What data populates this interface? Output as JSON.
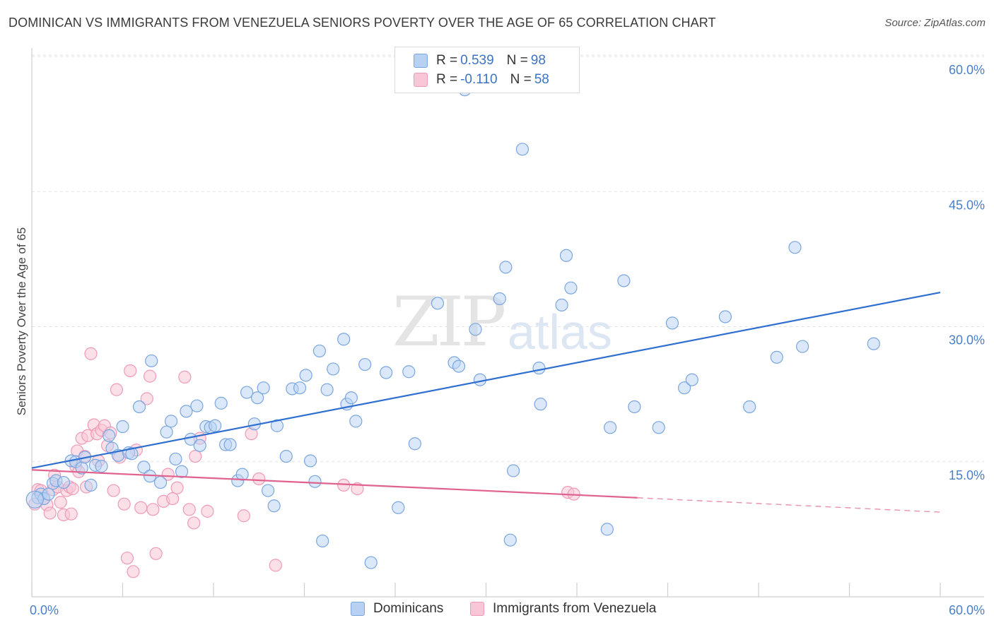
{
  "title": "DOMINICAN VS IMMIGRANTS FROM VENEZUELA SENIORS POVERTY OVER THE AGE OF 65 CORRELATION CHART",
  "source": "Source: ZipAtlas.com",
  "watermark": {
    "zip": "ZIP",
    "atlas": "atlas"
  },
  "legend": {
    "r_label": "R =",
    "n_label": "N =",
    "rows": [
      {
        "r": "0.539",
        "n": "98"
      },
      {
        "r": "-0.110",
        "n": "58"
      }
    ]
  },
  "colors": {
    "dominicans_fill": "#b8d1f3",
    "dominicans_stroke": "#7aa6df",
    "dominicans_line": "#2f6fcf",
    "venezuela_fill": "#f8c6d6",
    "venezuela_stroke": "#ef9ab7",
    "venezuela_line": "#e0628f",
    "tick": "#4a7fc8"
  },
  "chart_data": {
    "type": "scatter",
    "title": "DOMINICAN VS IMMIGRANTS FROM VENEZUELA SENIORS POVERTY OVER THE AGE OF 65 CORRELATION CHART",
    "xlabel": "",
    "ylabel": "Seniors Poverty Over the Age of 65",
    "xlim": [
      0,
      60
    ],
    "ylim": [
      0,
      60
    ],
    "x_tick_labels": [
      "0.0%",
      "60.0%"
    ],
    "y_tick_values": [
      15,
      30,
      45,
      60
    ],
    "y_tick_labels": [
      "15.0%",
      "30.0%",
      "45.0%",
      "60.0%"
    ],
    "grid": true,
    "legend_position": "top-center",
    "series": [
      {
        "name": "Dominicans",
        "color": "#b8d1f3",
        "trend": {
          "x": [
            0,
            60
          ],
          "y": [
            14.3,
            33.8
          ]
        },
        "points": [
          [
            0.4,
            11.0
          ],
          [
            0.6,
            11.4
          ],
          [
            0.8,
            10.9
          ],
          [
            1.1,
            11.4
          ],
          [
            1.4,
            12.6
          ],
          [
            1.6,
            12.9
          ],
          [
            2.1,
            12.7
          ],
          [
            2.6,
            15.1
          ],
          [
            2.9,
            15.0
          ],
          [
            3.3,
            14.3
          ],
          [
            3.5,
            15.5
          ],
          [
            3.9,
            12.4
          ],
          [
            4.2,
            14.6
          ],
          [
            4.6,
            14.5
          ],
          [
            5.1,
            17.9
          ],
          [
            5.3,
            16.5
          ],
          [
            5.7,
            15.7
          ],
          [
            6.0,
            18.9
          ],
          [
            6.4,
            16.0
          ],
          [
            6.6,
            15.9
          ],
          [
            7.1,
            21.1
          ],
          [
            7.4,
            14.4
          ],
          [
            7.8,
            13.4
          ],
          [
            7.9,
            26.2
          ],
          [
            8.5,
            12.7
          ],
          [
            8.9,
            18.3
          ],
          [
            9.2,
            19.5
          ],
          [
            9.5,
            15.3
          ],
          [
            9.9,
            13.9
          ],
          [
            10.2,
            20.6
          ],
          [
            10.5,
            17.5
          ],
          [
            10.9,
            21.2
          ],
          [
            11.1,
            16.8
          ],
          [
            11.5,
            18.9
          ],
          [
            11.8,
            18.8
          ],
          [
            12.1,
            19.0
          ],
          [
            12.5,
            21.5
          ],
          [
            12.8,
            16.9
          ],
          [
            13.1,
            16.9
          ],
          [
            13.6,
            12.9
          ],
          [
            13.9,
            13.6
          ],
          [
            14.2,
            22.7
          ],
          [
            14.7,
            19.2
          ],
          [
            14.9,
            22.1
          ],
          [
            15.3,
            23.2
          ],
          [
            15.6,
            11.8
          ],
          [
            16.0,
            10.1
          ],
          [
            16.2,
            19.0
          ],
          [
            16.8,
            15.6
          ],
          [
            17.2,
            23.1
          ],
          [
            17.7,
            23.2
          ],
          [
            18.1,
            24.6
          ],
          [
            18.4,
            15.1
          ],
          [
            18.7,
            12.8
          ],
          [
            19.0,
            27.3
          ],
          [
            19.2,
            6.2
          ],
          [
            19.5,
            23.0
          ],
          [
            19.9,
            25.3
          ],
          [
            20.6,
            28.6
          ],
          [
            20.8,
            21.4
          ],
          [
            21.1,
            22.1
          ],
          [
            21.4,
            19.5
          ],
          [
            22.0,
            25.8
          ],
          [
            23.4,
            24.9
          ],
          [
            24.2,
            9.9
          ],
          [
            24.9,
            25.0
          ],
          [
            25.3,
            17.0
          ],
          [
            26.8,
            32.6
          ],
          [
            27.9,
            26.0
          ],
          [
            28.2,
            25.6
          ],
          [
            28.6,
            56.3
          ],
          [
            29.3,
            29.7
          ],
          [
            29.6,
            24.1
          ],
          [
            30.9,
            33.1
          ],
          [
            31.3,
            36.6
          ],
          [
            31.6,
            6.3
          ],
          [
            31.8,
            14.0
          ],
          [
            32.4,
            49.7
          ],
          [
            33.5,
            25.4
          ],
          [
            33.6,
            21.4
          ],
          [
            35.0,
            32.4
          ],
          [
            35.3,
            37.9
          ],
          [
            35.6,
            34.3
          ],
          [
            38.0,
            7.5
          ],
          [
            38.2,
            18.8
          ],
          [
            39.1,
            35.1
          ],
          [
            39.8,
            21.1
          ],
          [
            41.4,
            18.8
          ],
          [
            42.3,
            30.4
          ],
          [
            43.1,
            23.2
          ],
          [
            43.6,
            24.1
          ],
          [
            45.8,
            31.1
          ],
          [
            47.4,
            21.1
          ],
          [
            49.2,
            26.6
          ],
          [
            50.4,
            38.8
          ],
          [
            50.9,
            27.8
          ],
          [
            55.6,
            28.1
          ],
          [
            22.4,
            3.8
          ]
        ]
      },
      {
        "name": "Immigrants from Venezuela",
        "color": "#f8c6d6",
        "trend": {
          "x": [
            0,
            40
          ],
          "y": [
            14.1,
            11.0
          ]
        },
        "trend_dashed": {
          "x": [
            40,
            60
          ],
          "y": [
            11.0,
            9.4
          ]
        },
        "points": [
          [
            0.2,
            10.3
          ],
          [
            0.4,
            11.9
          ],
          [
            0.6,
            11.8
          ],
          [
            0.8,
            10.9
          ],
          [
            1.0,
            10.2
          ],
          [
            1.2,
            9.3
          ],
          [
            1.4,
            11.9
          ],
          [
            1.5,
            13.5
          ],
          [
            1.7,
            12.2
          ],
          [
            1.9,
            10.5
          ],
          [
            2.1,
            9.1
          ],
          [
            2.3,
            11.8
          ],
          [
            2.5,
            12.2
          ],
          [
            2.6,
            9.2
          ],
          [
            2.7,
            12.0
          ],
          [
            2.9,
            14.5
          ],
          [
            3.0,
            16.2
          ],
          [
            3.1,
            13.9
          ],
          [
            3.3,
            17.6
          ],
          [
            3.5,
            15.6
          ],
          [
            3.6,
            12.2
          ],
          [
            3.7,
            17.9
          ],
          [
            3.9,
            27.0
          ],
          [
            4.1,
            19.1
          ],
          [
            4.3,
            18.1
          ],
          [
            4.4,
            15.1
          ],
          [
            4.6,
            18.5
          ],
          [
            4.8,
            19.0
          ],
          [
            5.0,
            16.8
          ],
          [
            5.2,
            18.2
          ],
          [
            5.4,
            11.8
          ],
          [
            5.6,
            23.0
          ],
          [
            5.8,
            15.5
          ],
          [
            6.1,
            10.3
          ],
          [
            6.3,
            4.3
          ],
          [
            6.5,
            25.1
          ],
          [
            6.7,
            2.8
          ],
          [
            6.9,
            16.3
          ],
          [
            7.2,
            9.9
          ],
          [
            7.6,
            22.0
          ],
          [
            7.8,
            24.5
          ],
          [
            8.0,
            9.7
          ],
          [
            8.2,
            4.8
          ],
          [
            8.7,
            10.6
          ],
          [
            9.0,
            13.6
          ],
          [
            9.3,
            10.9
          ],
          [
            9.6,
            12.1
          ],
          [
            10.1,
            24.4
          ],
          [
            10.4,
            9.7
          ],
          [
            10.7,
            8.2
          ],
          [
            11.1,
            17.6
          ],
          [
            11.6,
            9.5
          ],
          [
            14.0,
            9.0
          ],
          [
            14.5,
            18.1
          ],
          [
            15.0,
            13.1
          ],
          [
            16.1,
            3.5
          ],
          [
            20.6,
            12.4
          ],
          [
            21.5,
            12.0
          ]
        ]
      }
    ],
    "extra_points_venezuela": [
      [
        35.4,
        11.6
      ],
      [
        35.8,
        11.4
      ],
      [
        10.8,
        15.6
      ]
    ]
  },
  "bottom_legend": {
    "items": [
      "Dominicans",
      "Immigrants from Venezuela"
    ]
  }
}
